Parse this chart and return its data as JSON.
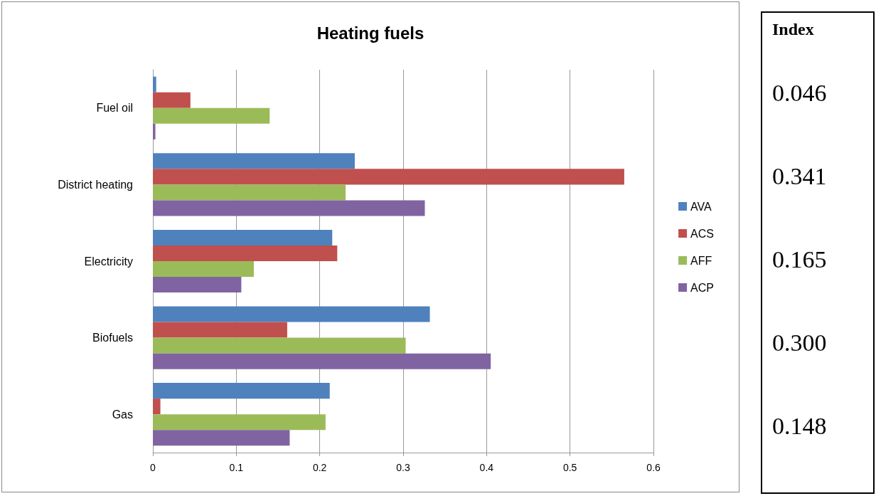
{
  "chart_data": [
    {
      "type": "bar",
      "orientation": "horizontal",
      "title": "Heating fuels",
      "categories": [
        "Fuel oil",
        "District heating",
        "Electricity",
        "Biofuels",
        "Gas"
      ],
      "series": [
        {
          "name": "AVA",
          "color": "#4f81bd",
          "values": [
            0.004,
            0.242,
            0.215,
            0.332,
            0.212
          ]
        },
        {
          "name": "ACS",
          "color": "#c0504d",
          "values": [
            0.045,
            0.565,
            0.221,
            0.161,
            0.009
          ]
        },
        {
          "name": "AFF",
          "color": "#9bbb59",
          "values": [
            0.14,
            0.231,
            0.121,
            0.303,
            0.207
          ]
        },
        {
          "name": "ACP",
          "color": "#8064a2",
          "values": [
            0.003,
            0.326,
            0.106,
            0.405,
            0.164
          ]
        }
      ],
      "xlim": [
        0,
        0.6
      ],
      "xticks": [
        0,
        0.1,
        0.2,
        0.3,
        0.4,
        0.5,
        0.6
      ],
      "grid": "x",
      "legend": "right"
    },
    {
      "type": "other",
      "title": "Index",
      "annotations": [
        "0.046",
        "0.341",
        "0.165",
        "0.300",
        "0.148"
      ]
    }
  ]
}
